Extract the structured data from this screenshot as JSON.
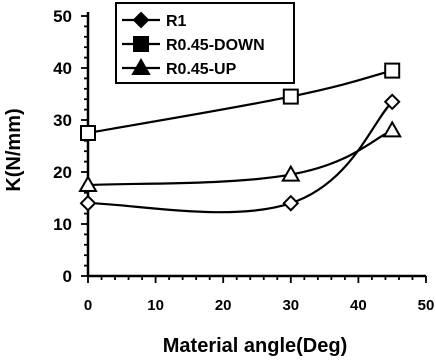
{
  "chart_data": {
    "type": "line",
    "title": "",
    "xlabel": "Material angle(Deg)",
    "ylabel": "K(N/mm)",
    "xlim": [
      0,
      50
    ],
    "ylim": [
      0,
      50
    ],
    "xticks": [
      0,
      10,
      20,
      30,
      40,
      50
    ],
    "yticks": [
      0,
      10,
      20,
      30,
      40,
      50
    ],
    "grid": false,
    "legend_position": "top-left",
    "smooth": true,
    "series": [
      {
        "name": "R1",
        "marker": "diamond",
        "color": "#000000",
        "x": [
          0,
          30,
          45
        ],
        "y": [
          14,
          14,
          33.5
        ]
      },
      {
        "name": "R0.45-DOWN",
        "marker": "square",
        "color": "#000000",
        "x": [
          0,
          30,
          45
        ],
        "y": [
          27.5,
          34.5,
          39.5
        ]
      },
      {
        "name": "R0.45-UP",
        "marker": "triangle",
        "color": "#000000",
        "x": [
          0,
          30,
          45
        ],
        "y": [
          17.5,
          19.5,
          28
        ]
      }
    ]
  }
}
